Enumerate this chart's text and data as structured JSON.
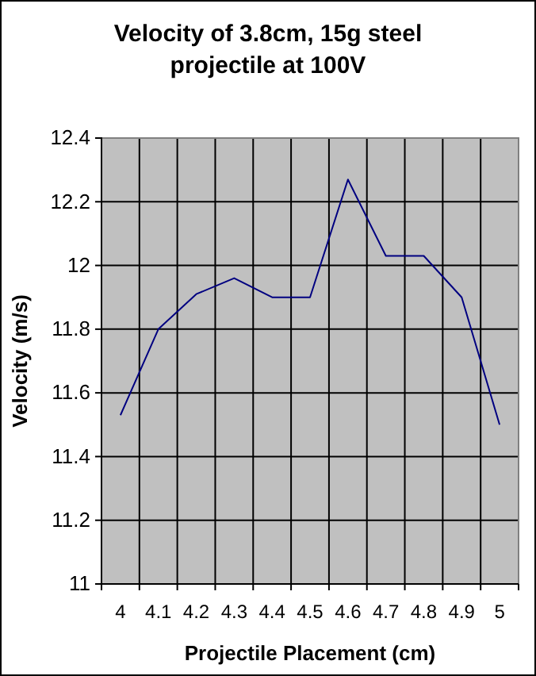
{
  "chart_data": {
    "type": "line",
    "title": "Velocity of 3.8cm, 15g steel projectile at 100V",
    "xlabel": "Projectile Placement (cm)",
    "ylabel": "Velocity (m/s)",
    "categories": [
      "4",
      "4.1",
      "4.2",
      "4.3",
      "4.4",
      "4.5",
      "4.6",
      "4.7",
      "4.8",
      "4.9",
      "5"
    ],
    "series": [
      {
        "color": "#000080",
        "values": [
          11.53,
          11.8,
          11.91,
          11.96,
          11.9,
          11.9,
          12.27,
          12.03,
          12.03,
          11.9,
          11.5
        ]
      }
    ],
    "ylim": [
      11,
      12.4
    ],
    "yticks": [
      11,
      11.2,
      11.4,
      11.6,
      11.8,
      12,
      12.2,
      12.4
    ],
    "grid": true,
    "legend": false,
    "marker": "none",
    "line_style": "solid"
  }
}
